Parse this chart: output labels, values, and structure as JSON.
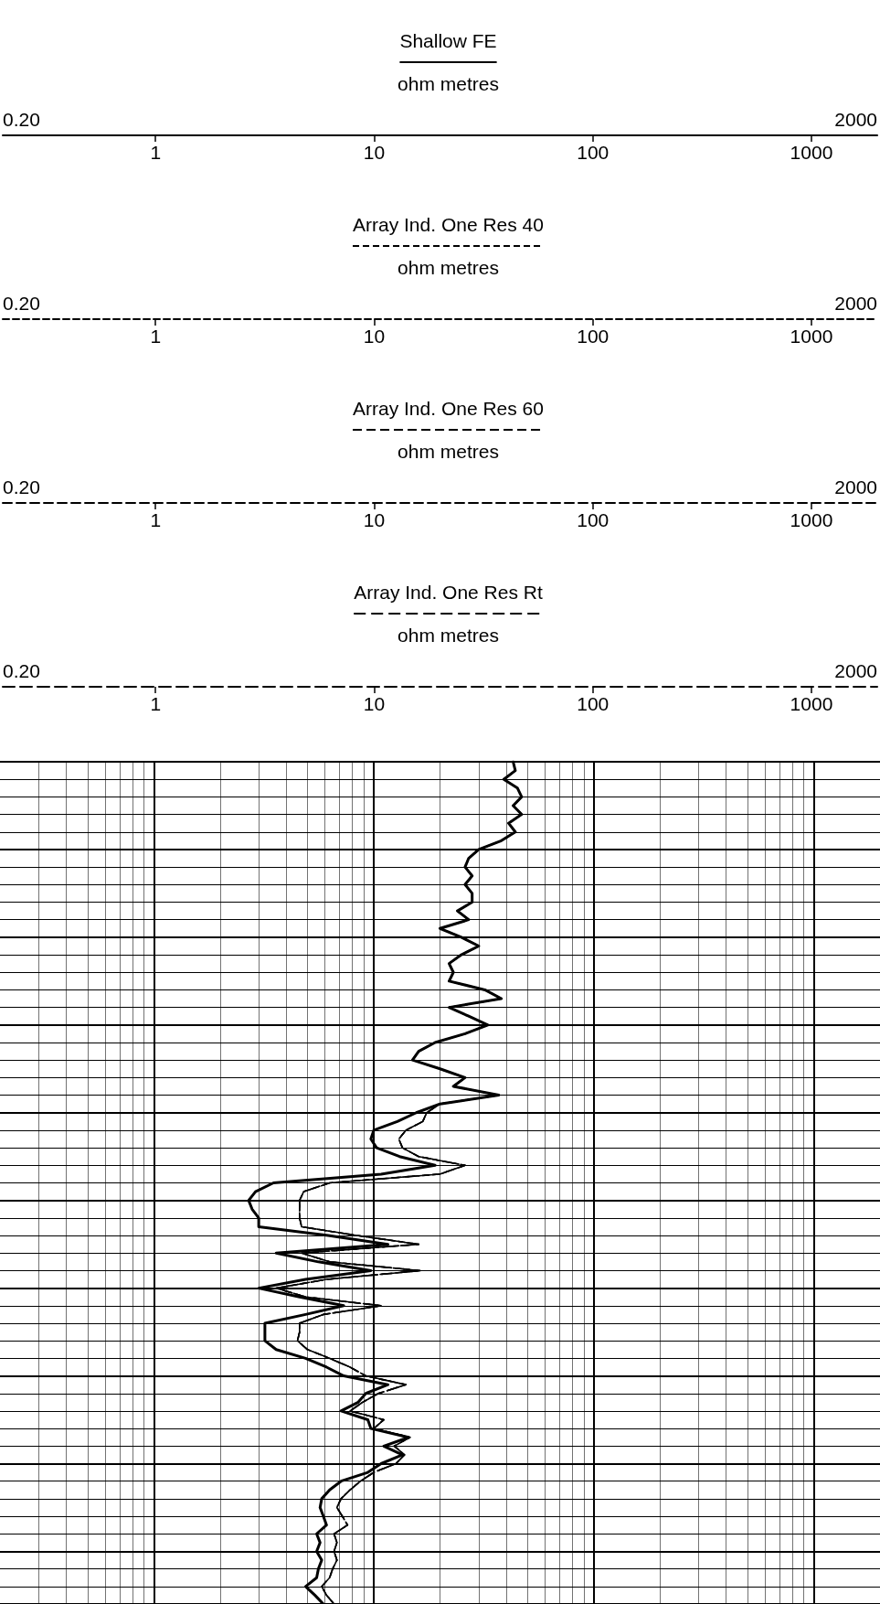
{
  "chart_data": {
    "type": "line",
    "xlabel": "ohm metres",
    "log": "x",
    "grid": true,
    "orientation": "horizontal",
    "marker": "none",
    "xlim": [
      0.2,
      2000
    ],
    "xticks": [
      {
        "value": 1,
        "label": "1"
      },
      {
        "value": 10,
        "label": "10"
      },
      {
        "value": 100,
        "label": "100"
      },
      {
        "value": 1000,
        "label": "1000"
      }
    ],
    "x2lim": [
      0.2,
      2000
    ],
    "x2ticks": [
      {
        "value": 0.2,
        "label": "0.20"
      },
      {
        "value": 2000,
        "label": "2000"
      }
    ],
    "categories": [
      null,
      null,
      null,
      null,
      null,
      null,
      null,
      null,
      null,
      null,
      null,
      null,
      null,
      null,
      null,
      null,
      null,
      null,
      null,
      null,
      null,
      null,
      null,
      null,
      null,
      null,
      null,
      null,
      null,
      null,
      null,
      null,
      null,
      null,
      null,
      null,
      null,
      null,
      null,
      null,
      null,
      null,
      null,
      null,
      null,
      null,
      null,
      null,
      null,
      null,
      null,
      null,
      null,
      null,
      null,
      null,
      null,
      null,
      null,
      null,
      null,
      null,
      null,
      null,
      null,
      null,
      null,
      null,
      null,
      null,
      null,
      null,
      null,
      null,
      null,
      null,
      null,
      null,
      null,
      null,
      null,
      null,
      null,
      null,
      null,
      null,
      null,
      null,
      null,
      null,
      null,
      null,
      null,
      null,
      null,
      null,
      null
    ],
    "series": [
      {
        "name": "Shallow FE",
        "color": "#000000",
        "line_style": "solid",
        "values": [
          43,
          44,
          39,
          45,
          47,
          43,
          47,
          41,
          44,
          38,
          30,
          27,
          26,
          28,
          26,
          28,
          28,
          24,
          27,
          20,
          25,
          30,
          25,
          22,
          23,
          22,
          32,
          38,
          22,
          27,
          33,
          26,
          19,
          16,
          15,
          20,
          26,
          23,
          37,
          20,
          15.6,
          12.8,
          10,
          9.7,
          10.3,
          13.1,
          19,
          10.8,
          3.5,
          2.9,
          2.7,
          2.8,
          3.0,
          3.0,
          6.2,
          11.6,
          3.6,
          5.6,
          9.7,
          4.9,
          3.0,
          4.6,
          7.3,
          4.9,
          3.2,
          3.2,
          3.2,
          3.6,
          4.9,
          6.1,
          7.3,
          11.6,
          9.2,
          8.5,
          7.1,
          9.4,
          9.7,
          14.4,
          11.1,
          13.5,
          10.8,
          9.4,
          7.1,
          6.3,
          5.8,
          5.7,
          5.9,
          6.1,
          5.5,
          5.7,
          5.5,
          5.8,
          5.6,
          5.5,
          4.9,
          5.4,
          5.9
        ]
      },
      {
        "name": "Array Ind. One Res 40",
        "color": "#000000",
        "line_style": "dashed",
        "values": [
          43,
          44,
          39,
          45,
          47,
          43,
          47,
          41,
          44,
          38,
          30,
          27,
          26,
          28,
          26,
          28,
          28,
          24,
          27,
          20,
          25,
          30,
          25,
          22,
          23,
          22,
          32,
          38,
          22,
          27,
          33,
          26,
          19,
          16,
          15,
          20,
          26,
          23,
          37,
          20,
          17.4,
          16.7,
          14,
          13,
          13.5,
          16,
          26,
          20,
          6.3,
          4.8,
          4.6,
          4.6,
          4.6,
          4.7,
          8.4,
          16,
          4.7,
          6.3,
          16.3,
          6.1,
          3.6,
          4.9,
          10.8,
          5.9,
          4.6,
          4.6,
          4.5,
          5.0,
          6.3,
          7.8,
          9.2,
          14,
          10.5,
          8.9,
          7.8,
          11.1,
          10,
          14.6,
          12.4,
          13.8,
          12.6,
          10,
          8.7,
          7.8,
          7.1,
          6.8,
          7.2,
          7.6,
          6.6,
          6.8,
          6.6,
          6.8,
          6.5,
          6.3,
          5.8,
          6.1,
          6.6
        ]
      },
      {
        "name": "Array Ind. One Res 60",
        "color": "#000000",
        "line_style": "dashed",
        "values": [
          43,
          44,
          39,
          45,
          47,
          43,
          47,
          41,
          44,
          38,
          30,
          27,
          26,
          28,
          26,
          28,
          28,
          24,
          27,
          20,
          25,
          30,
          25,
          22,
          23,
          22,
          32,
          38,
          22,
          27,
          33,
          26,
          19,
          16,
          15,
          20,
          26,
          23,
          37,
          20,
          17.4,
          16.7,
          14,
          13,
          13.5,
          16,
          26,
          20,
          6.3,
          4.8,
          4.6,
          4.6,
          4.6,
          4.7,
          8.4,
          16,
          4.7,
          6.3,
          16.3,
          6.1,
          3.6,
          4.9,
          10.8,
          5.9,
          4.6,
          4.6,
          4.5,
          5.0,
          6.3,
          7.8,
          9.2,
          14,
          10.5,
          8.9,
          7.8,
          11.1,
          10,
          14.6,
          12.4,
          13.8,
          12.6,
          10,
          8.7,
          7.8,
          7.1,
          6.8,
          7.2,
          7.6,
          6.6,
          6.8,
          6.6,
          6.8,
          6.5,
          6.3,
          5.8,
          6.1,
          6.6
        ]
      },
      {
        "name": "Array Ind. One Res Rt",
        "color": "#000000",
        "line_style": "dashed",
        "values": [
          43,
          44,
          39,
          45,
          47,
          43,
          47,
          41,
          44,
          38,
          30,
          27,
          26,
          28,
          26,
          28,
          28,
          24,
          27,
          20,
          25,
          30,
          25,
          22,
          23,
          22,
          32,
          38,
          22,
          27,
          33,
          26,
          19,
          16,
          15,
          20,
          26,
          23,
          37,
          20,
          17.4,
          16.7,
          14,
          13,
          13.5,
          16,
          26,
          20,
          6.3,
          4.8,
          4.6,
          4.6,
          4.6,
          4.7,
          8.4,
          16,
          4.7,
          6.3,
          16.3,
          6.1,
          3.6,
          4.9,
          10.8,
          5.9,
          4.6,
          4.6,
          4.5,
          5.0,
          6.3,
          7.8,
          9.2,
          14,
          10.5,
          8.9,
          7.8,
          11.1,
          10,
          14.6,
          12.4,
          13.8,
          12.6,
          10,
          8.7,
          7.8,
          7.1,
          6.8,
          7.2,
          7.6,
          6.6,
          6.8,
          6.6,
          6.8,
          6.5,
          6.3,
          5.8,
          6.1,
          6.6
        ]
      }
    ]
  }
}
